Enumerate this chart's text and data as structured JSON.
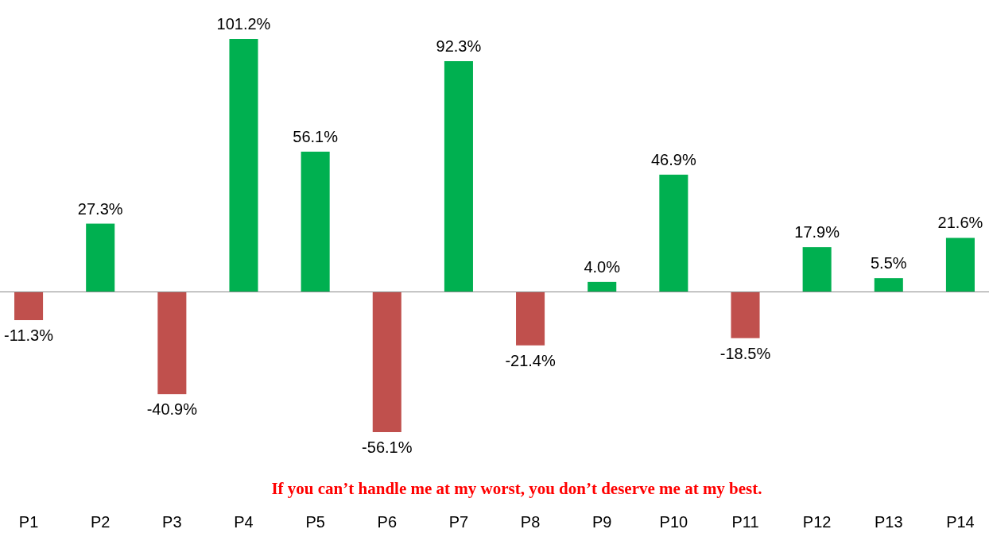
{
  "chart_data": {
    "type": "bar",
    "categories": [
      "P1",
      "P2",
      "P3",
      "P4",
      "P5",
      "P6",
      "P7",
      "P8",
      "P9",
      "P10",
      "P11",
      "P12",
      "P13",
      "P14"
    ],
    "values": [
      -11.3,
      27.3,
      -40.9,
      101.2,
      56.1,
      -56.1,
      92.3,
      -21.4,
      4.0,
      46.9,
      -18.5,
      17.9,
      5.5,
      21.6
    ],
    "value_labels": [
      "-11.3%",
      "27.3%",
      "-40.9%",
      "101.2%",
      "56.1%",
      "-56.1%",
      "92.3%",
      "-21.4%",
      "4.0%",
      "46.9%",
      "-18.5%",
      "17.9%",
      "5.5%",
      "21.6%"
    ],
    "colors": [
      "#c0504d",
      "#00b050",
      "#c0504d",
      "#00b050",
      "#00b050",
      "#c0504d",
      "#00b050",
      "#c0504d",
      "#00b050",
      "#00b050",
      "#c0504d",
      "#00b050",
      "#00b050",
      "#00b050"
    ],
    "annotations": [
      "If you can’t handle me at my worst, you don’t deserve me at my best."
    ]
  }
}
